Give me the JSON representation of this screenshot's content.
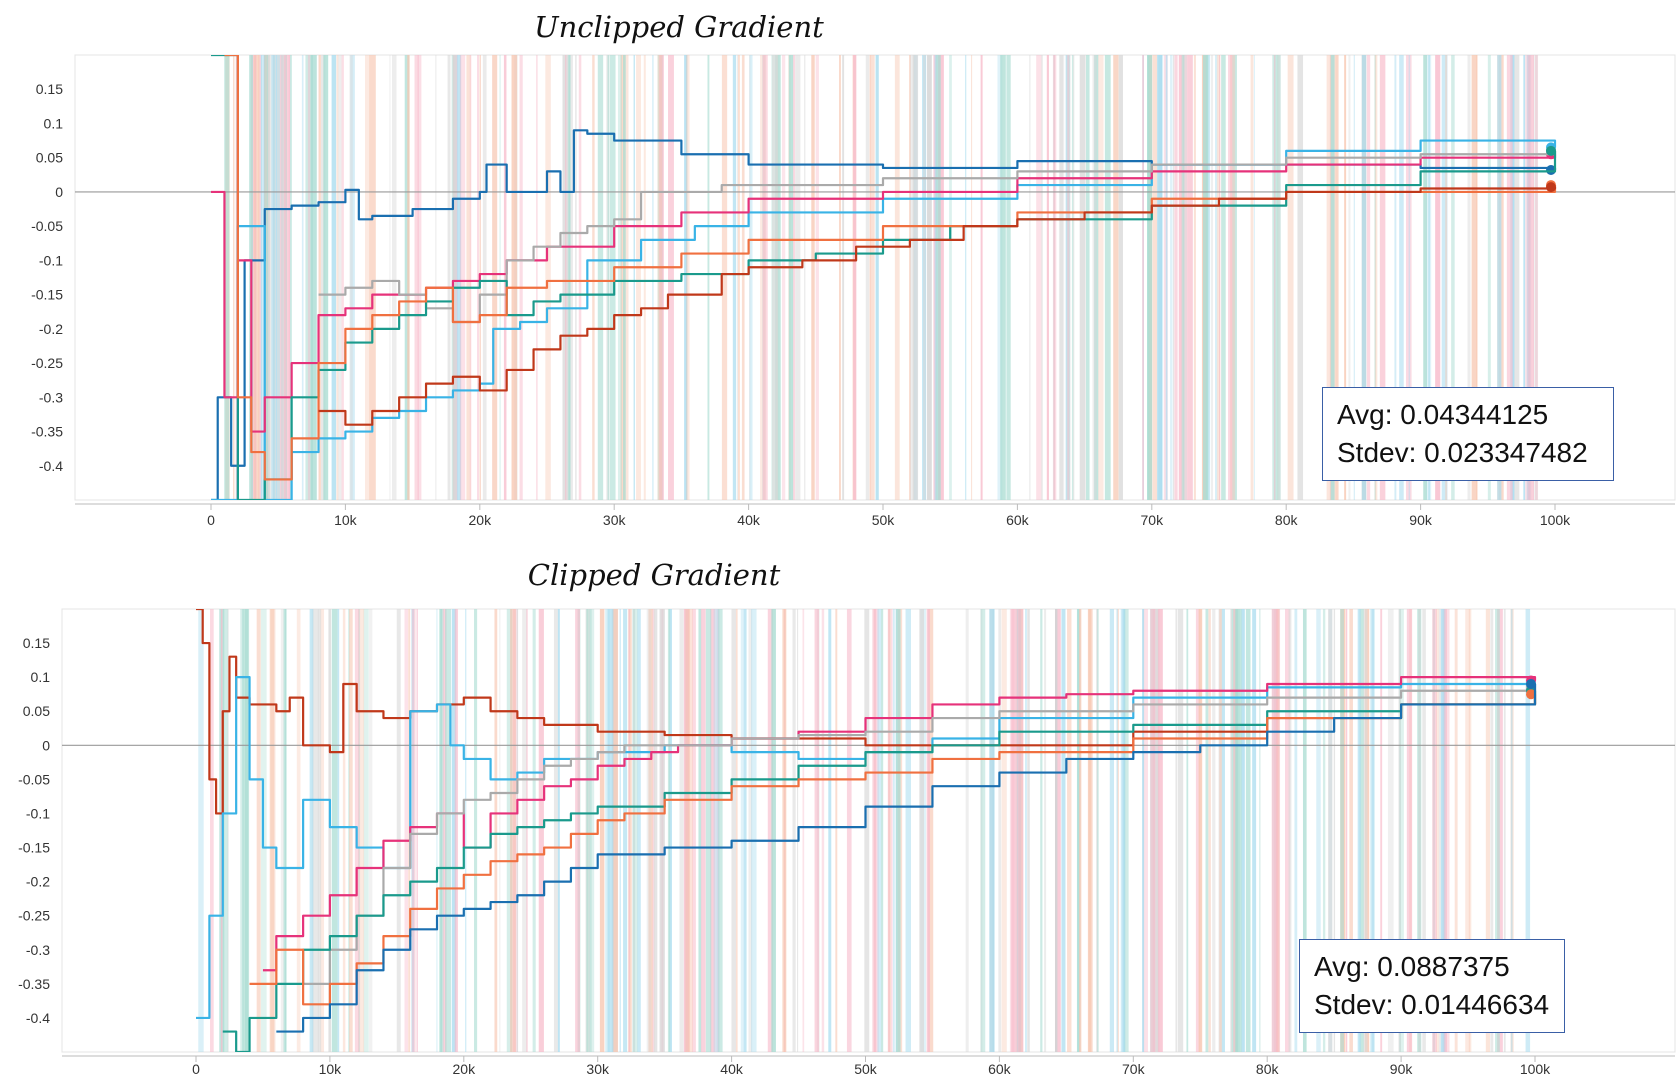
{
  "chart_data": [
    {
      "type": "line",
      "title": "Unclipped Gradient",
      "xlabel": "",
      "ylabel": "",
      "xlim": [
        0,
        100000
      ],
      "ylim": [
        -0.45,
        0.2
      ],
      "x_ticks": [
        "0",
        "10k",
        "20k",
        "30k",
        "40k",
        "50k",
        "60k",
        "70k",
        "80k",
        "90k",
        "100k"
      ],
      "y_ticks": [
        "0.15",
        "0.1",
        "0.05",
        "0",
        "-0.05",
        "-0.1",
        "-0.15",
        "-0.2",
        "-0.25",
        "-0.3",
        "-0.35",
        "-0.4"
      ],
      "annotation": {
        "avg": "Avg: 0.04344125",
        "stdev": "Stdev: 0.023347482"
      },
      "series": [
        {
          "color": "#1a6fb0",
          "x": [
            0,
            500,
            1500,
            2500,
            4000,
            6000,
            8000,
            10000,
            11000,
            12000,
            15000,
            18000,
            20000,
            20500,
            22000,
            24000,
            25000,
            26000,
            27000,
            28000,
            30000,
            35000,
            40000,
            50000,
            60000,
            70000,
            80000,
            90000,
            100000
          ],
          "y": [
            -0.45,
            -0.3,
            -0.4,
            -0.1,
            -0.025,
            -0.02,
            -0.015,
            0.003,
            -0.04,
            -0.035,
            -0.025,
            -0.01,
            0.0,
            0.04,
            0.0,
            0.0,
            0.03,
            0.0,
            0.09,
            0.085,
            0.075,
            0.055,
            0.04,
            0.035,
            0.045,
            0.04,
            0.04,
            0.035,
            0.032
          ]
        },
        {
          "color": "#39b3e6",
          "x": [
            0,
            2000,
            4000,
            6000,
            8000,
            10000,
            12000,
            14000,
            16000,
            18000,
            20000,
            21000,
            23000,
            25000,
            28000,
            32000,
            36000,
            40000,
            50000,
            60000,
            70000,
            80000,
            90000,
            100000
          ],
          "y": [
            -0.45,
            -0.05,
            -0.45,
            -0.38,
            -0.36,
            -0.35,
            -0.33,
            -0.32,
            -0.3,
            -0.29,
            -0.28,
            -0.2,
            -0.19,
            -0.17,
            -0.1,
            -0.07,
            -0.05,
            -0.03,
            -0.01,
            0.01,
            0.04,
            0.06,
            0.075,
            0.065
          ]
        },
        {
          "color": "#e6327a",
          "x": [
            0,
            1000,
            2000,
            3000,
            4000,
            6000,
            8000,
            10000,
            12000,
            14000,
            16000,
            18000,
            20000,
            22000,
            25000,
            30000,
            35000,
            40000,
            50000,
            60000,
            70000,
            80000,
            90000,
            100000
          ],
          "y": [
            0.0,
            -0.3,
            -0.1,
            -0.35,
            -0.3,
            -0.25,
            -0.18,
            -0.17,
            -0.15,
            -0.15,
            -0.14,
            -0.13,
            -0.12,
            -0.1,
            -0.08,
            -0.05,
            -0.03,
            -0.01,
            0.0,
            0.02,
            0.03,
            0.04,
            0.05,
            0.055
          ]
        },
        {
          "color": "#aaaaaa",
          "x": [
            8000,
            10000,
            12000,
            14000,
            16000,
            18000,
            20000,
            22000,
            24000,
            26000,
            28000,
            30000,
            32000,
            34000,
            38000,
            40000,
            50000,
            60000,
            70000,
            80000,
            90000,
            100000
          ],
          "y": [
            -0.15,
            -0.14,
            -0.13,
            -0.15,
            -0.17,
            -0.19,
            -0.15,
            -0.1,
            -0.08,
            -0.06,
            -0.05,
            -0.04,
            0.0,
            0.0,
            0.01,
            0.01,
            0.02,
            0.03,
            0.04,
            0.05,
            0.055,
            0.06
          ]
        },
        {
          "color": "#1a9a8c",
          "x": [
            0,
            2000,
            4000,
            6000,
            8000,
            10000,
            12000,
            14000,
            16000,
            18000,
            20000,
            22000,
            24000,
            26000,
            30000,
            35000,
            40000,
            45000,
            50000,
            55000,
            60000,
            70000,
            80000,
            90000,
            100000
          ],
          "y": [
            0.2,
            -0.45,
            -0.42,
            -0.3,
            -0.26,
            -0.22,
            -0.2,
            -0.18,
            -0.16,
            -0.14,
            -0.13,
            -0.18,
            -0.16,
            -0.15,
            -0.13,
            -0.12,
            -0.1,
            -0.09,
            -0.07,
            -0.05,
            -0.04,
            -0.02,
            0.01,
            0.03,
            0.06
          ]
        },
        {
          "color": "#f07040",
          "x": [
            1000,
            2000,
            3000,
            4000,
            6000,
            8000,
            10000,
            12000,
            14000,
            16000,
            18000,
            20000,
            22000,
            25000,
            30000,
            35000,
            40000,
            50000,
            60000,
            70000,
            80000,
            90000,
            100000
          ],
          "y": [
            0.2,
            -0.3,
            -0.38,
            -0.42,
            -0.36,
            -0.25,
            -0.2,
            -0.18,
            -0.16,
            -0.14,
            -0.19,
            -0.18,
            -0.14,
            -0.13,
            -0.11,
            -0.09,
            -0.07,
            -0.05,
            -0.03,
            -0.01,
            0.0,
            0.0,
            0.01
          ]
        },
        {
          "color": "#c0381a",
          "x": [
            8000,
            10000,
            12000,
            14000,
            16000,
            18000,
            20000,
            22000,
            24000,
            26000,
            28000,
            30000,
            32000,
            34000,
            38000,
            40000,
            44000,
            48000,
            52000,
            56000,
            60000,
            65000,
            70000,
            75000,
            80000,
            90000,
            100000
          ],
          "y": [
            -0.32,
            -0.34,
            -0.32,
            -0.3,
            -0.28,
            -0.27,
            -0.29,
            -0.26,
            -0.23,
            -0.21,
            -0.2,
            -0.18,
            -0.17,
            -0.15,
            -0.12,
            -0.11,
            -0.1,
            -0.08,
            -0.07,
            -0.05,
            -0.04,
            -0.03,
            -0.02,
            -0.01,
            0.0,
            0.005,
            0.007
          ]
        }
      ]
    },
    {
      "type": "line",
      "title": "Clipped Gradient",
      "xlabel": "",
      "ylabel": "",
      "xlim": [
        0,
        100000
      ],
      "ylim": [
        -0.45,
        0.2
      ],
      "x_ticks": [
        "0",
        "10k",
        "20k",
        "30k",
        "40k",
        "50k",
        "60k",
        "70k",
        "80k",
        "90k",
        "100k"
      ],
      "y_ticks": [
        "0.15",
        "0.1",
        "0.05",
        "0",
        "-0.05",
        "-0.1",
        "-0.15",
        "-0.2",
        "-0.25",
        "-0.3",
        "-0.35",
        "-0.4"
      ],
      "annotation": {
        "avg": "Avg: 0.0887375",
        "stdev": "Stdev: 0.01446634"
      },
      "series": [
        {
          "color": "#c0381a",
          "x": [
            0,
            500,
            1000,
            1500,
            2000,
            2500,
            3000,
            4000,
            6000,
            7000,
            8000,
            10000,
            11000,
            12000,
            14000,
            16000,
            18000,
            20000,
            22000,
            24000,
            26000,
            30000,
            35000,
            40000,
            45000,
            50000,
            60000,
            70000,
            80000,
            90000,
            100000
          ],
          "y": [
            0.2,
            0.15,
            -0.05,
            -0.1,
            0.05,
            0.13,
            0.07,
            0.06,
            0.05,
            0.07,
            0.0,
            -0.01,
            0.09,
            0.05,
            0.04,
            0.05,
            0.06,
            0.07,
            0.05,
            0.04,
            0.03,
            0.02,
            0.015,
            0.01,
            0.01,
            0.0,
            0.0,
            0.02,
            0.04,
            0.06,
            0.08
          ]
        },
        {
          "color": "#39b3e6",
          "x": [
            0,
            1000,
            2000,
            3000,
            4000,
            5000,
            6000,
            8000,
            10000,
            12000,
            14000,
            16000,
            18000,
            19000,
            20000,
            22000,
            24000,
            26000,
            28000,
            30000,
            35000,
            40000,
            45000,
            50000,
            55000,
            60000,
            70000,
            80000,
            90000,
            100000
          ],
          "y": [
            -0.4,
            -0.25,
            -0.1,
            0.1,
            -0.05,
            -0.15,
            -0.18,
            -0.08,
            -0.12,
            -0.15,
            -0.18,
            0.05,
            0.06,
            0.0,
            -0.02,
            -0.05,
            -0.04,
            -0.02,
            -0.02,
            -0.01,
            0.0,
            -0.01,
            -0.02,
            -0.01,
            0.01,
            0.04,
            0.07,
            0.085,
            0.09,
            0.085
          ]
        },
        {
          "color": "#e6327a",
          "x": [
            5000,
            6000,
            8000,
            10000,
            12000,
            14000,
            16000,
            18000,
            20000,
            22000,
            24000,
            26000,
            28000,
            30000,
            32000,
            34000,
            36000,
            40000,
            45000,
            50000,
            55000,
            60000,
            65000,
            70000,
            80000,
            90000,
            100000
          ],
          "y": [
            -0.33,
            -0.28,
            -0.25,
            -0.22,
            -0.18,
            -0.14,
            -0.12,
            -0.1,
            -0.15,
            -0.1,
            -0.08,
            -0.06,
            -0.05,
            -0.03,
            -0.02,
            -0.01,
            0.0,
            0.01,
            0.02,
            0.04,
            0.06,
            0.07,
            0.075,
            0.08,
            0.09,
            0.1,
            0.095
          ]
        },
        {
          "color": "#aaaaaa",
          "x": [
            8000,
            10000,
            12000,
            14000,
            16000,
            18000,
            20000,
            22000,
            24000,
            26000,
            28000,
            30000,
            32000,
            35000,
            40000,
            45000,
            50000,
            55000,
            60000,
            70000,
            80000,
            90000,
            100000
          ],
          "y": [
            -0.35,
            -0.3,
            -0.25,
            -0.18,
            -0.13,
            -0.1,
            -0.08,
            -0.07,
            -0.05,
            -0.03,
            -0.02,
            -0.01,
            0.0,
            0.0,
            0.01,
            0.015,
            0.02,
            0.04,
            0.05,
            0.06,
            0.07,
            0.08,
            0.085
          ]
        },
        {
          "color": "#1a9a8c",
          "x": [
            2000,
            3000,
            4000,
            6000,
            8000,
            10000,
            12000,
            14000,
            16000,
            18000,
            20000,
            22000,
            24000,
            26000,
            28000,
            30000,
            35000,
            40000,
            45000,
            50000,
            55000,
            60000,
            70000,
            80000,
            90000,
            100000
          ],
          "y": [
            -0.42,
            -0.45,
            -0.4,
            -0.35,
            -0.3,
            -0.28,
            -0.25,
            -0.22,
            -0.2,
            -0.18,
            -0.15,
            -0.13,
            -0.12,
            -0.11,
            -0.1,
            -0.09,
            -0.07,
            -0.05,
            -0.03,
            -0.01,
            0.0,
            0.02,
            0.03,
            0.05,
            0.06,
            0.08
          ]
        },
        {
          "color": "#f07040",
          "x": [
            4000,
            6000,
            8000,
            10000,
            12000,
            14000,
            16000,
            18000,
            20000,
            22000,
            24000,
            26000,
            28000,
            30000,
            32000,
            35000,
            40000,
            45000,
            50000,
            55000,
            60000,
            70000,
            80000,
            90000,
            100000
          ],
          "y": [
            -0.35,
            -0.3,
            -0.38,
            -0.35,
            -0.32,
            -0.28,
            -0.24,
            -0.21,
            -0.19,
            -0.17,
            -0.16,
            -0.15,
            -0.13,
            -0.11,
            -0.1,
            -0.08,
            -0.06,
            -0.05,
            -0.04,
            -0.02,
            -0.01,
            0.01,
            0.04,
            0.06,
            0.075
          ]
        },
        {
          "color": "#1a6fb0",
          "x": [
            6000,
            8000,
            10000,
            12000,
            14000,
            16000,
            18000,
            20000,
            22000,
            24000,
            26000,
            28000,
            30000,
            35000,
            40000,
            45000,
            50000,
            55000,
            60000,
            65000,
            70000,
            75000,
            80000,
            85000,
            90000,
            100000
          ],
          "y": [
            -0.42,
            -0.4,
            -0.38,
            -0.33,
            -0.3,
            -0.27,
            -0.25,
            -0.24,
            -0.23,
            -0.22,
            -0.2,
            -0.18,
            -0.16,
            -0.15,
            -0.14,
            -0.12,
            -0.09,
            -0.06,
            -0.04,
            -0.02,
            -0.01,
            0.0,
            0.02,
            0.04,
            0.06,
            0.09
          ]
        }
      ]
    }
  ]
}
